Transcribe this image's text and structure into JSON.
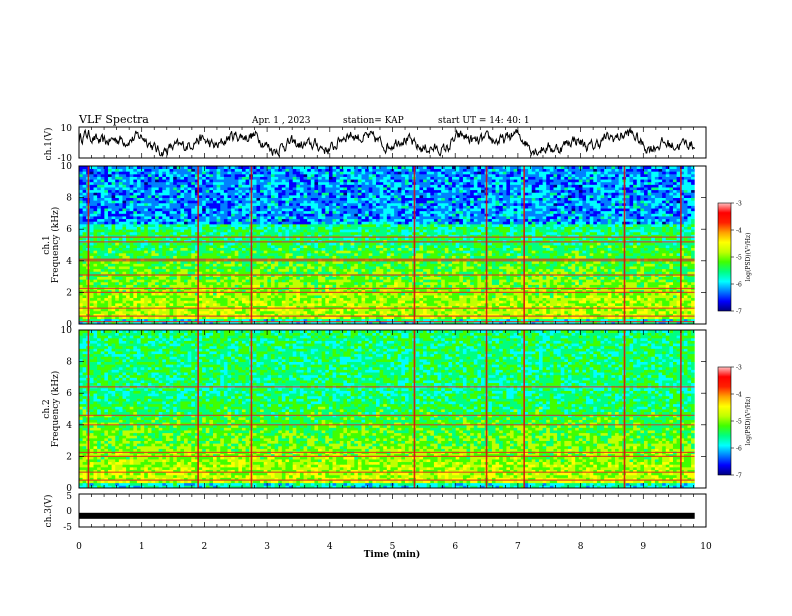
{
  "header": {
    "title": "VLF Spectra",
    "date": "Apr. 1 , 2023",
    "station": "station= KAP",
    "start": "start UT = 14: 40: 1"
  },
  "chart_data": [
    {
      "type": "line",
      "name": "ch1-waveform",
      "ylabel": "ch.1(V)",
      "ylim": [
        -10,
        10
      ],
      "yticks": [
        "10",
        "-10"
      ],
      "x_range_min": [
        0,
        9.82
      ],
      "approx_range_v": [
        -8.5,
        9.8
      ]
    },
    {
      "type": "heatmap",
      "name": "ch1-spectrogram",
      "ylabel_lines": [
        "ch.1",
        "Frequency (kHz)"
      ],
      "ylim": [
        0,
        10
      ],
      "yticks": [
        "0",
        "2",
        "4",
        "6",
        "8",
        "10"
      ],
      "x_range_min": [
        0,
        9.82
      ],
      "colorbar": {
        "label": "log(PSD)(V²/Hz)",
        "range": [
          -7,
          -3
        ],
        "ticks": [
          "-3",
          "-4",
          "-5",
          "-6",
          "-7"
        ]
      },
      "persistent_lines_khz": [
        0.15,
        0.5,
        1.0,
        2.0,
        2.25,
        3.1,
        4.0,
        4.1,
        5.2,
        5.5
      ],
      "broadband_events_min": [
        0.15,
        1.9,
        2.75,
        5.35,
        6.5,
        7.1,
        8.7,
        9.6
      ]
    },
    {
      "type": "heatmap",
      "name": "ch2-spectrogram",
      "ylabel_lines": [
        "ch.2",
        "Frequency (kHz)"
      ],
      "ylim": [
        0,
        10
      ],
      "yticks": [
        "0",
        "2",
        "4",
        "6",
        "8",
        "10"
      ],
      "x_range_min": [
        0,
        9.82
      ],
      "colorbar": {
        "label": "log(PSD)(V²/Hz)",
        "range": [
          -7,
          -3
        ],
        "ticks": [
          "-3",
          "-4",
          "-5",
          "-6",
          "-7"
        ]
      },
      "persistent_lines_khz": [
        0.5,
        1.0,
        2.0,
        2.25,
        4.0,
        4.6,
        6.4
      ],
      "broadband_events_min": [
        0.15,
        1.9,
        2.75,
        5.35,
        6.5,
        7.1,
        8.7,
        9.6
      ]
    },
    {
      "type": "line",
      "name": "ch3-waveform",
      "ylabel": "ch.3(V)",
      "ylim": [
        -5,
        5
      ],
      "yticks": [
        "5",
        "0",
        "-5"
      ],
      "x_range_min": [
        0,
        9.82
      ],
      "level_v": -1.6
    }
  ],
  "xaxis": {
    "label": "Time (min)",
    "range": [
      0,
      10
    ],
    "ticks": [
      "0",
      "1",
      "2",
      "3",
      "4",
      "5",
      "6",
      "7",
      "8",
      "9",
      "10"
    ]
  },
  "colors": {
    "colormap": [
      "#000080",
      "#0000ff",
      "#0080ff",
      "#00ffff",
      "#00ff80",
      "#40ff00",
      "#c0ff00",
      "#ffff00",
      "#ffa000",
      "#ff2000",
      "#ff0000",
      "#ffc0c0"
    ]
  }
}
